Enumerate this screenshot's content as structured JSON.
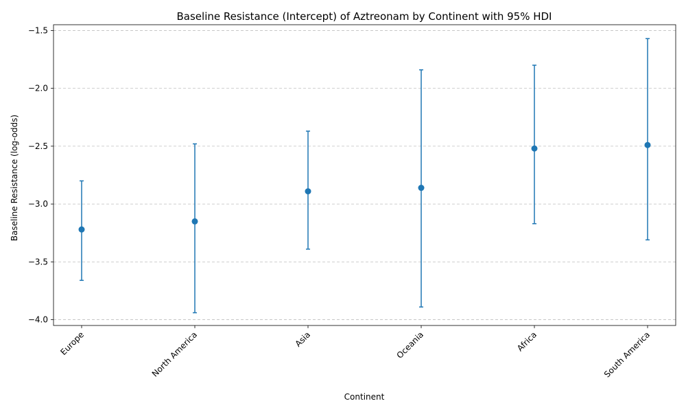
{
  "chart_data": {
    "type": "errorbar",
    "title": "Baseline Resistance (Intercept) of Aztreonam by Continent with 95% HDI",
    "xlabel": "Continent",
    "ylabel": "Baseline Resistance (log-odds)",
    "categories": [
      "Europe",
      "North America",
      "Asia",
      "Oceania",
      "Africa",
      "South America"
    ],
    "series": [
      {
        "values": [
          -3.22,
          -3.15,
          -2.89,
          -2.86,
          -2.52,
          -2.49
        ],
        "lower": [
          -3.66,
          -3.94,
          -3.39,
          -3.89,
          -3.17,
          -3.31
        ],
        "upper": [
          -2.8,
          -2.48,
          -2.37,
          -1.84,
          -1.8,
          -1.57
        ],
        "color": "#1f77b4"
      }
    ],
    "ylim": [
      -4.05,
      -1.45
    ],
    "yticks": [
      -4.0,
      -3.5,
      -3.0,
      -2.5,
      -2.0,
      -1.5
    ],
    "ytick_labels": [
      "−4.0",
      "−3.5",
      "−3.0",
      "−2.5",
      "−2.0",
      "−1.5"
    ],
    "grid": "y",
    "legend": "none"
  }
}
